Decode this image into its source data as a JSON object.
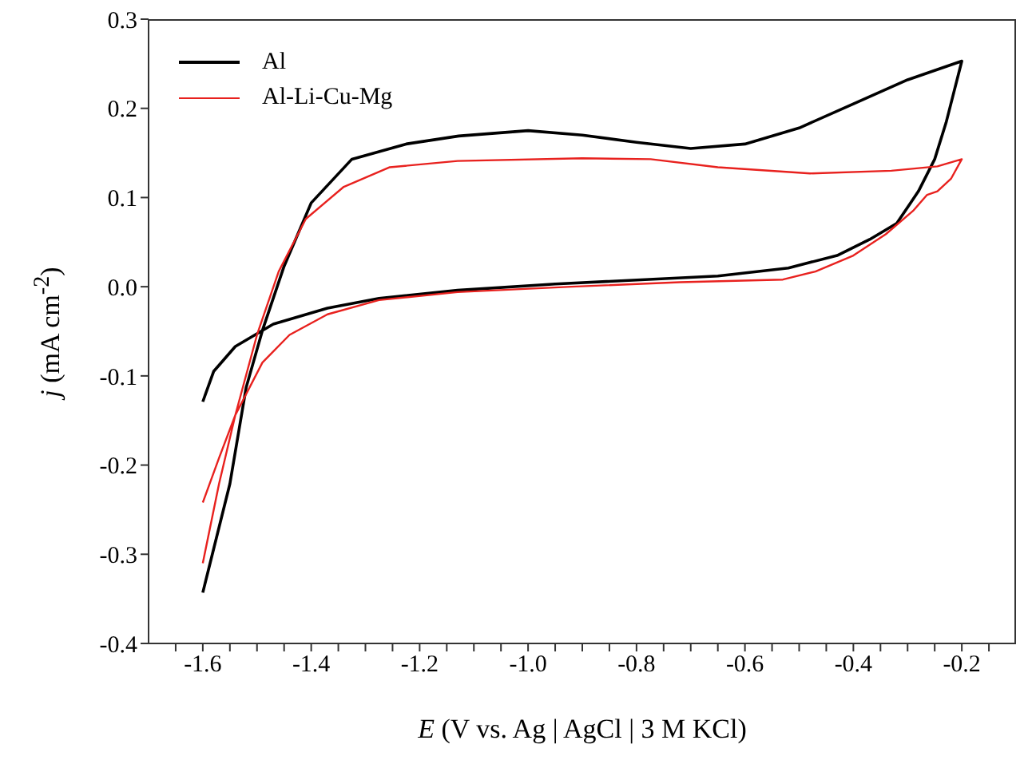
{
  "chart_data": {
    "type": "line",
    "xlabel": "E (V vs. Ag | AgCl | 3 M KCl)",
    "ylabel": "j (mA cm$^{-2}$)",
    "xlim": [
      -1.7,
      -0.1
    ],
    "ylim": [
      -0.4,
      0.3
    ],
    "xticks": [
      {
        "value": -1.65,
        "label": null
      },
      -1.6,
      {
        "value": -1.55,
        "label": null
      },
      {
        "value": -1.5,
        "label": null
      },
      {
        "value": -1.45,
        "label": null
      },
      {
        "value": -1.4,
        "label": "-1.4"
      },
      {
        "value": -1.35,
        "label": null
      },
      {
        "value": -1.3,
        "label": null
      },
      {
        "value": -1.25,
        "label": null
      },
      {
        "value": -1.2,
        "label": "-1.2"
      },
      {
        "value": -1.15,
        "label": null
      },
      {
        "value": -1.1,
        "label": null
      },
      {
        "value": -1.05,
        "label": null
      },
      {
        "value": -1.0,
        "label": "-1.0"
      },
      {
        "value": -0.95,
        "label": null
      },
      {
        "value": -0.9,
        "label": null
      },
      {
        "value": -0.85,
        "label": null
      },
      {
        "value": -0.8,
        "label": "-0.8"
      },
      {
        "value": -0.75,
        "label": null
      },
      {
        "value": -0.7,
        "label": null
      },
      {
        "value": -0.65,
        "label": null
      },
      {
        "value": -0.6,
        "label": "-0.6"
      },
      {
        "value": -0.55,
        "label": null
      },
      {
        "value": -0.5,
        "label": null
      },
      {
        "value": -0.45,
        "label": null
      },
      {
        "value": -0.4,
        "label": "-0.4"
      },
      {
        "value": -0.35,
        "label": null
      },
      {
        "value": -0.3,
        "label": null
      },
      {
        "value": -0.25,
        "label": null
      },
      {
        "value": -0.2,
        "label": "-0.2"
      },
      {
        "value": -0.15,
        "label": null
      }
    ],
    "yticks": [
      {
        "value": -0.4,
        "label": "-0.4"
      },
      {
        "value": -0.3,
        "label": "-0.3"
      },
      {
        "value": -0.2,
        "label": "-0.2"
      },
      {
        "value": -0.1,
        "label": "-0.1"
      },
      {
        "value": 0,
        "label": "0.0"
      },
      {
        "value": 0.1,
        "label": "0.1"
      },
      {
        "value": 0.2,
        "label": "0.2"
      },
      {
        "value": 0.3,
        "label": "0.3"
      }
    ],
    "grid": false,
    "legend": "top left",
    "marker": "none",
    "line_style": "solid",
    "series": [
      {
        "name": "Al",
        "color": "#000000",
        "x": [
          -1.6,
          -1.55,
          -1.52,
          -1.49,
          -1.45,
          -1.4,
          -1.325,
          -1.225,
          -1.128,
          -1.0,
          -0.9,
          -0.8,
          -0.7,
          -0.6,
          -0.5,
          -0.4,
          -0.3,
          -0.2,
          -0.229,
          -0.25,
          -0.28,
          -0.32,
          -0.37,
          -0.43,
          -0.52,
          -0.65,
          -0.95,
          -1.13,
          -1.275,
          -1.37,
          -1.47,
          -1.54,
          -1.58,
          -1.6
        ],
        "values": [
          -0.343,
          -0.221,
          -0.113,
          -0.049,
          0.023,
          0.094,
          0.143,
          0.16,
          0.169,
          0.175,
          0.17,
          0.162,
          0.155,
          0.16,
          0.178,
          0.205,
          0.232,
          0.253,
          0.184,
          0.143,
          0.107,
          0.071,
          0.053,
          0.035,
          0.021,
          0.012,
          0.003,
          -0.004,
          -0.013,
          -0.024,
          -0.042,
          -0.067,
          -0.095,
          -0.129
        ]
      },
      {
        "name": "Al-Li-Cu-Mg",
        "color": "#e8211e",
        "x": [
          -1.6,
          -1.57,
          -1.54,
          -1.5,
          -1.46,
          -1.41,
          -1.34,
          -1.255,
          -1.13,
          -0.9,
          -0.774,
          -0.65,
          -0.48,
          -0.33,
          -0.245,
          -0.2,
          -0.22,
          -0.245,
          -0.264,
          -0.29,
          -0.34,
          -0.4,
          -0.47,
          -0.53,
          -0.72,
          -0.92,
          -1.13,
          -1.275,
          -1.37,
          -1.44,
          -1.49,
          -1.54,
          -1.57,
          -1.6
        ],
        "values": [
          -0.31,
          -0.221,
          -0.144,
          -0.054,
          0.017,
          0.076,
          0.112,
          0.134,
          0.141,
          0.144,
          0.143,
          0.134,
          0.127,
          0.13,
          0.135,
          0.143,
          0.121,
          0.107,
          0.103,
          0.085,
          0.059,
          0.035,
          0.017,
          0.008,
          0.005,
          0.0,
          -0.006,
          -0.015,
          -0.031,
          -0.054,
          -0.085,
          -0.144,
          -0.192,
          -0.242
        ]
      }
    ]
  }
}
